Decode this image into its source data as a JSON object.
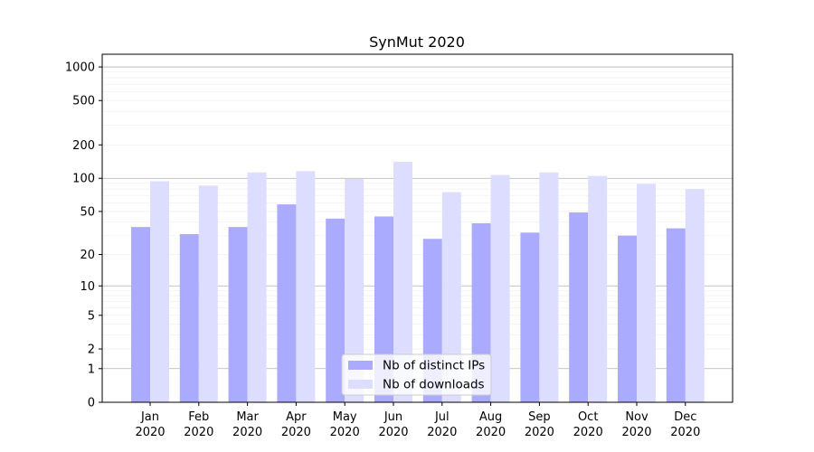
{
  "chart_data": {
    "type": "bar",
    "title": "SynMut 2020",
    "xlabel": "",
    "ylabel": "",
    "yscale": "symlog",
    "ylim": [
      0,
      1300
    ],
    "yticks": [
      "0",
      "1",
      "2",
      "5",
      "10",
      "20",
      "50",
      "100",
      "200",
      "500",
      "1000"
    ],
    "categories": [
      "Jan",
      "Feb",
      "Mar",
      "Apr",
      "May",
      "Jun",
      "Jul",
      "Aug",
      "Sep",
      "Oct",
      "Nov",
      "Dec"
    ],
    "category_year": "2020",
    "grid": true,
    "legend_position": "bottom-center",
    "series": [
      {
        "name": "Nb of distinct IPs",
        "color": "#aaaaff",
        "values": [
          36,
          31,
          36,
          58,
          43,
          45,
          28,
          39,
          32,
          49,
          30,
          35
        ]
      },
      {
        "name": "Nb of downloads",
        "color": "#ddddff",
        "values": [
          94,
          86,
          113,
          116,
          99,
          141,
          75,
          107,
          113,
          105,
          89,
          80
        ]
      }
    ]
  }
}
